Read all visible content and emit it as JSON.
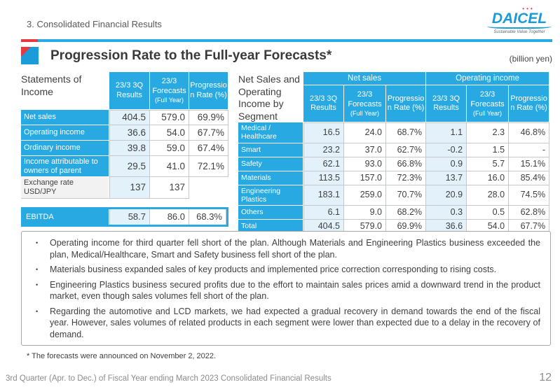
{
  "header": {
    "section_title": "3. Consolidated Financial Results",
    "logo_text": "DAICEL",
    "logo_dots": "•••",
    "logo_tagline": "Sustainable Value Together",
    "title": "Progression Rate to the Full-year Forecasts*",
    "unit": "(billion yen)"
  },
  "columns": {
    "results": "23/3 3Q Results",
    "forecasts_main": "23/3 Forecasts",
    "forecasts_sub": "(Full Year)",
    "progression": "Progression Rate (%)"
  },
  "left_table": {
    "caption": "Statements of Income",
    "rows": [
      {
        "label": "Net sales",
        "values": [
          "404.5",
          "579.0",
          "69.9%"
        ]
      },
      {
        "label": "Operating income",
        "values": [
          "36.6",
          "54.0",
          "67.7%"
        ]
      },
      {
        "label": "Ordinary income",
        "values": [
          "39.8",
          "59.0",
          "67.4%"
        ]
      },
      {
        "label": "Income attributable to owners of parent",
        "values": [
          "29.5",
          "41.0",
          "72.1%"
        ]
      },
      {
        "label": "Exchange rate  USD/JPY",
        "muted": true,
        "values": [
          "137",
          "137",
          ""
        ]
      }
    ],
    "ebitda": {
      "label": "EBITDA",
      "values": [
        "58.7",
        "86.0",
        "68.3%"
      ]
    }
  },
  "right_table": {
    "caption": "Net Sales and Operating Income by Segment",
    "groups": {
      "net_sales": "Net sales",
      "operating_income": "Operating income"
    },
    "rows": [
      {
        "label": "Medical / Healthcare",
        "values": [
          "16.5",
          "24.0",
          "68.7%",
          "1.1",
          "2.3",
          "46.8%"
        ]
      },
      {
        "label": "Smart",
        "values": [
          "23.2",
          "37.0",
          "62.7%",
          "-0.2",
          "1.5",
          "-"
        ]
      },
      {
        "label": "Safety",
        "values": [
          "62.1",
          "93.0",
          "66.8%",
          "0.9",
          "5.7",
          "15.1%"
        ]
      },
      {
        "label": "Materials",
        "values": [
          "113.5",
          "157.0",
          "72.3%",
          "13.7",
          "16.0",
          "85.4%"
        ]
      },
      {
        "label": "Engineering Plastics",
        "values": [
          "183.1",
          "259.0",
          "70.7%",
          "20.9",
          "28.0",
          "74.5%"
        ]
      },
      {
        "label": "Others",
        "values": [
          "6.1",
          "9.0",
          "68.2%",
          "0.3",
          "0.5",
          "62.8%"
        ]
      },
      {
        "label": "Total",
        "values": [
          "404.5",
          "579.0",
          "69.9%",
          "36.6",
          "54.0",
          "67.7%"
        ]
      }
    ]
  },
  "bullets": [
    "Operating income for third quarter fell short of the plan. Although Materials and Engineering Plastics business exceeded the plan, Medical/Healthcare, Smart and Safety business fell short of the plan.",
    "Materials business expanded sales of key products and implemented price correction corresponding to rising costs.",
    "Engineering Plastics business secured profits due to the effort to maintain sales prices amid a downward trend in the product market, even though sales volumes fell short of the plan.",
    "Regarding the automotive and LCD markets, we had expected a gradual recovery in demand towards the end of the fiscal year. However, sales volumes of related products in each segment were lower than expected due to a delay in the recovery of demand."
  ],
  "footnote": "* The forecasts were announced on November 2, 2022.",
  "footer": {
    "left": "3rd Quarter (Apr. to Dec.) of Fiscal Year ending March 2023 Consolidated Financial Results",
    "page_number": "12"
  },
  "colors": {
    "accent_blue": "#29a9e1",
    "accent_red": "#e8383d",
    "shade_blue": "#e2f1fa",
    "logo_blue": "#1a9ad6"
  }
}
